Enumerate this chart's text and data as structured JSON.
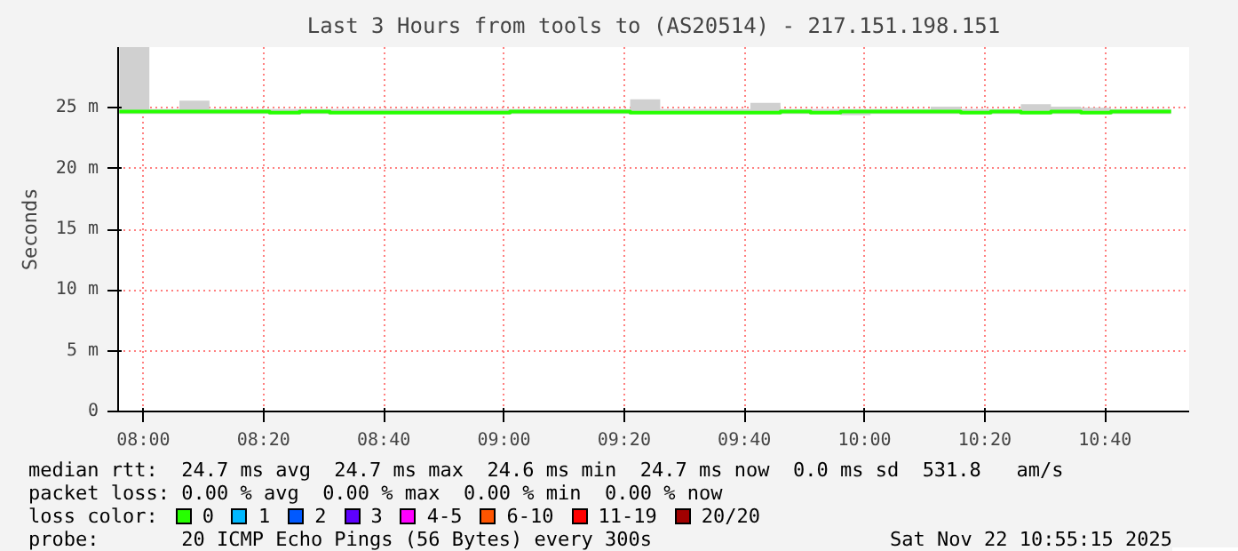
{
  "chart_data": {
    "type": "step",
    "title": "Last 3 Hours from tools to (AS20514) - 217.151.198.151",
    "ylabel": "Seconds",
    "x": [
      7.9333,
      8.0167,
      8.1,
      8.1833,
      8.2667,
      8.35,
      8.4333,
      8.5167,
      8.6,
      8.6833,
      8.7667,
      8.85,
      8.9333,
      9.0167,
      9.1,
      9.1833,
      9.2667,
      9.35,
      9.4333,
      9.5167,
      9.6,
      9.6833,
      9.7667,
      9.85,
      9.9333,
      10.0167,
      10.1,
      10.1833,
      10.2667,
      10.35,
      10.4333,
      10.5167,
      10.6,
      10.6833,
      10.7667,
      10.85
    ],
    "series": [
      {
        "name": "0",
        "color": "#26ff00",
        "values": [
          24.7,
          24.7,
          24.7,
          24.7,
          24.7,
          24.6,
          24.7,
          24.6,
          24.6,
          24.6,
          24.6,
          24.6,
          24.6,
          24.7,
          24.7,
          24.7,
          24.7,
          24.6,
          24.6,
          24.6,
          24.6,
          24.6,
          24.7,
          24.6,
          24.7,
          24.7,
          24.7,
          24.7,
          24.6,
          24.7,
          24.6,
          24.7,
          24.6,
          24.7,
          24.7,
          24.7
        ],
        "lower": [
          24.5,
          24.5,
          24.5,
          24.5,
          24.5,
          24.5,
          24.5,
          24.5,
          24.5,
          24.5,
          24.5,
          24.5,
          24.5,
          24.5,
          24.5,
          24.5,
          24.5,
          24.5,
          24.5,
          24.5,
          24.5,
          24.5,
          24.5,
          24.5,
          24.4,
          24.5,
          24.5,
          24.5,
          24.5,
          24.5,
          24.5,
          24.5,
          24.5,
          24.5,
          24.5,
          24.5
        ],
        "upper": [
          30,
          24.9,
          25.6,
          24.9,
          24.9,
          24.9,
          24.9,
          24.9,
          24.9,
          24.9,
          24.9,
          24.9,
          24.9,
          24.9,
          24.9,
          24.9,
          24.9,
          25.7,
          24.9,
          24.9,
          24.9,
          25.4,
          24.9,
          24.9,
          24.9,
          24.9,
          24.9,
          25.1,
          24.9,
          24.9,
          25.3,
          25.1,
          25.0,
          24.9,
          24.9,
          24.9
        ]
      },
      {
        "name": "1",
        "color": "#00b8ff",
        "values": [
          null,
          null,
          null,
          null,
          null,
          null,
          null,
          null,
          null,
          null,
          null,
          null,
          null,
          null,
          null,
          null,
          null,
          null,
          null,
          null,
          null,
          null,
          null,
          null,
          null,
          null,
          null,
          null,
          null,
          null,
          null,
          null,
          null,
          null,
          null,
          null
        ]
      },
      {
        "name": "2",
        "color": "#0059ff",
        "values": [
          null,
          null,
          null,
          null,
          null,
          null,
          null,
          null,
          null,
          null,
          null,
          null,
          null,
          null,
          null,
          null,
          null,
          null,
          null,
          null,
          null,
          null,
          null,
          null,
          null,
          null,
          null,
          null,
          null,
          null,
          null,
          null,
          null,
          null,
          null,
          null
        ]
      },
      {
        "name": "3",
        "color": "#5e00ff",
        "values": [
          null,
          null,
          null,
          null,
          null,
          null,
          null,
          null,
          null,
          null,
          null,
          null,
          null,
          null,
          null,
          null,
          null,
          null,
          null,
          null,
          null,
          null,
          null,
          null,
          null,
          null,
          null,
          null,
          null,
          null,
          null,
          null,
          null,
          null,
          null,
          null
        ]
      },
      {
        "name": "4-5",
        "color": "#ff00ff",
        "values": [
          null,
          null,
          null,
          null,
          null,
          null,
          null,
          null,
          null,
          null,
          null,
          null,
          null,
          null,
          null,
          null,
          null,
          null,
          null,
          null,
          null,
          null,
          null,
          null,
          null,
          null,
          null,
          null,
          null,
          null,
          null,
          null,
          null,
          null,
          null,
          null
        ]
      },
      {
        "name": "6-10",
        "color": "#ff5500",
        "values": [
          null,
          null,
          null,
          null,
          null,
          null,
          null,
          null,
          null,
          null,
          null,
          null,
          null,
          null,
          null,
          null,
          null,
          null,
          null,
          null,
          null,
          null,
          null,
          null,
          null,
          null,
          null,
          null,
          null,
          null,
          null,
          null,
          null,
          null,
          null,
          null
        ]
      },
      {
        "name": "11-19",
        "color": "#ff0000",
        "values": [
          null,
          null,
          null,
          null,
          null,
          null,
          null,
          null,
          null,
          null,
          null,
          null,
          null,
          null,
          null,
          null,
          null,
          null,
          null,
          null,
          null,
          null,
          null,
          null,
          null,
          null,
          null,
          null,
          null,
          null,
          null,
          null,
          null,
          null,
          null,
          null
        ]
      },
      {
        "name": "20/20",
        "color": "#a10000",
        "values": [
          null,
          null,
          null,
          null,
          null,
          null,
          null,
          null,
          null,
          null,
          null,
          null,
          null,
          null,
          null,
          null,
          null,
          null,
          null,
          null,
          null,
          null,
          null,
          null,
          null,
          null,
          null,
          null,
          null,
          null,
          null,
          null,
          null,
          null,
          null,
          null
        ]
      }
    ],
    "legend_title": "loss color:",
    "legend": "bottom",
    "xlim": [
      7.93,
      10.9
    ],
    "xticks": [
      {
        "value": 8.0,
        "label": "08:00"
      },
      {
        "value": 8.3333,
        "label": "08:20"
      },
      {
        "value": 8.6667,
        "label": "08:40"
      },
      {
        "value": 9.0,
        "label": "09:00"
      },
      {
        "value": 9.3333,
        "label": "09:20"
      },
      {
        "value": 9.6667,
        "label": "09:40"
      },
      {
        "value": 10.0,
        "label": "10:00"
      },
      {
        "value": 10.3333,
        "label": "10:20"
      },
      {
        "value": 10.6667,
        "label": "10:40"
      }
    ],
    "ylim": [
      0,
      30
    ],
    "yticks": [
      0,
      {
        "value": 5,
        "label": "5 m"
      },
      {
        "value": 10,
        "label": "10 m"
      },
      {
        "value": 15,
        "label": "15 m"
      },
      {
        "value": 20,
        "label": "20 m"
      },
      {
        "value": 25,
        "label": "25 m"
      }
    ],
    "grid": true,
    "marker": "none",
    "line_style": "solid",
    "annotations": [
      "median rtt:  24.7 ms avg  24.7 ms max  24.6 ms min  24.7 ms now  0.0 ms sd  531.8   am/s",
      "packet loss: 0.00 % avg  0.00 % max  0.00 % min  0.00 % now",
      "probe:       20 ICMP Echo Pings (56 Bytes) every 300s",
      "Sat Nov 22 10:55:15 2025"
    ]
  }
}
